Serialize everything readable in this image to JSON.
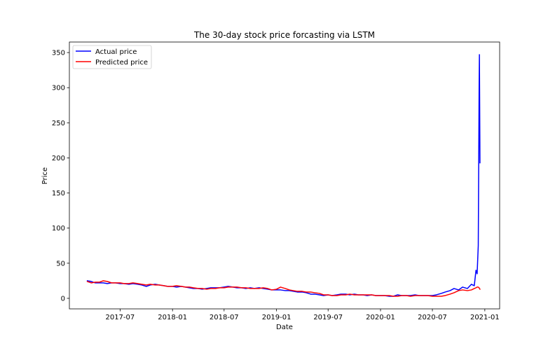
{
  "chart_data": {
    "type": "line",
    "title": "The 30-day stock price forcasting via LSTM",
    "xlabel": "Date",
    "ylabel": "Price",
    "xlim": [
      "2017-01-04",
      "2021-02-22"
    ],
    "ylim": [
      -15,
      365
    ],
    "xticks": [
      "2017-07",
      "2018-01",
      "2018-07",
      "2019-01",
      "2019-07",
      "2020-01",
      "2020-07",
      "2021-01"
    ],
    "yticks": [
      0,
      50,
      100,
      150,
      200,
      250,
      300,
      350
    ],
    "grid": false,
    "legend": "upper-left",
    "x": [
      "2017-03-08",
      "2017-03-22",
      "2017-04-05",
      "2017-04-19",
      "2017-05-03",
      "2017-05-17",
      "2017-06-01",
      "2017-06-15",
      "2017-07-01",
      "2017-07-15",
      "2017-08-01",
      "2017-08-15",
      "2017-09-01",
      "2017-09-15",
      "2017-10-01",
      "2017-10-15",
      "2017-11-01",
      "2017-11-15",
      "2017-12-01",
      "2017-12-15",
      "2018-01-01",
      "2018-01-15",
      "2018-02-01",
      "2018-02-15",
      "2018-03-01",
      "2018-03-15",
      "2018-04-01",
      "2018-04-15",
      "2018-05-01",
      "2018-05-15",
      "2018-06-01",
      "2018-06-15",
      "2018-07-01",
      "2018-07-15",
      "2018-08-01",
      "2018-08-15",
      "2018-09-01",
      "2018-09-15",
      "2018-10-01",
      "2018-10-15",
      "2018-11-01",
      "2018-11-15",
      "2018-12-01",
      "2018-12-15",
      "2019-01-01",
      "2019-01-15",
      "2019-02-01",
      "2019-02-15",
      "2019-03-01",
      "2019-03-15",
      "2019-04-01",
      "2019-04-15",
      "2019-05-01",
      "2019-05-15",
      "2019-06-01",
      "2019-06-15",
      "2019-07-01",
      "2019-07-15",
      "2019-08-01",
      "2019-08-15",
      "2019-09-01",
      "2019-09-15",
      "2019-10-01",
      "2019-10-15",
      "2019-11-01",
      "2019-11-15",
      "2019-12-01",
      "2019-12-15",
      "2020-01-01",
      "2020-01-15",
      "2020-02-01",
      "2020-02-15",
      "2020-03-01",
      "2020-03-15",
      "2020-04-01",
      "2020-04-15",
      "2020-05-01",
      "2020-05-15",
      "2020-06-01",
      "2020-06-15",
      "2020-07-01",
      "2020-07-15",
      "2020-08-01",
      "2020-08-15",
      "2020-09-01",
      "2020-09-15",
      "2020-10-01",
      "2020-10-15",
      "2020-11-01",
      "2020-11-15",
      "2020-11-25",
      "2020-12-01",
      "2020-12-05",
      "2020-12-09",
      "2020-12-12",
      "2020-12-13",
      "2020-12-15"
    ],
    "series": [
      {
        "name": "Actual price",
        "color": "#0000ff",
        "values": [
          25,
          24,
          22,
          22,
          22,
          21,
          22,
          22,
          21,
          21,
          20,
          21,
          20,
          19,
          17,
          19,
          20,
          19,
          18,
          17,
          17,
          16,
          17,
          16,
          15,
          14,
          14,
          13,
          14,
          15,
          15,
          15,
          16,
          17,
          16,
          15,
          15,
          14,
          15,
          14,
          15,
          14,
          13,
          12,
          12,
          12,
          11,
          11,
          10,
          9,
          9,
          8,
          6,
          6,
          5,
          4,
          5,
          4,
          5,
          6,
          6,
          5,
          6,
          5,
          5,
          4,
          5,
          4,
          4,
          4,
          3,
          3,
          5,
          4,
          4,
          4,
          5,
          4,
          4,
          4,
          4,
          5,
          7,
          9,
          11,
          14,
          12,
          16,
          14,
          20,
          18,
          40,
          35,
          75,
          300,
          347,
          193
        ]
      },
      {
        "name": "Predicted price",
        "color": "#ff0000",
        "values": [
          24,
          22,
          23,
          23,
          25,
          24,
          22,
          22,
          22,
          21,
          21,
          22,
          21,
          20,
          19,
          20,
          19,
          19,
          18,
          17,
          17,
          18,
          17,
          16,
          16,
          15,
          14,
          14,
          13,
          14,
          14,
          15,
          15,
          16,
          16,
          16,
          15,
          15,
          14,
          14,
          14,
          15,
          14,
          12,
          13,
          16,
          14,
          12,
          11,
          10,
          10,
          9,
          9,
          8,
          7,
          5,
          5,
          4,
          4,
          5,
          5,
          6,
          5,
          5,
          5,
          5,
          5,
          4,
          4,
          4,
          4,
          3,
          3,
          4,
          4,
          3,
          4,
          4,
          4,
          4,
          3,
          3,
          3,
          4,
          6,
          8,
          11,
          12,
          11,
          12,
          14,
          15,
          16,
          16,
          15,
          14,
          13
        ]
      }
    ]
  }
}
